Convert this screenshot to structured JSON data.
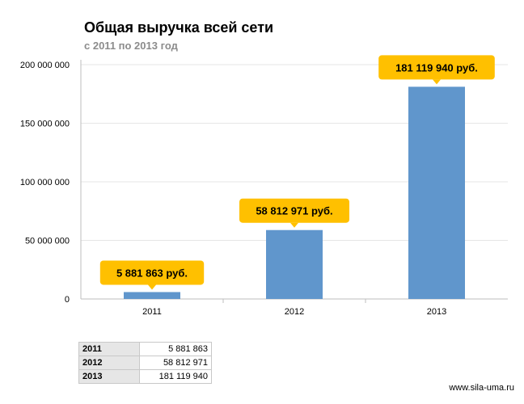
{
  "title": "Общая выручка всей сети",
  "subtitle": "с 2011 по 2013 год",
  "watermark": "www.sila-uma.ru",
  "colors": {
    "bar": "#6096cc",
    "callout": "#ffc000",
    "grid": "#e6e6e6"
  },
  "chart_data": {
    "type": "bar",
    "title": "Общая выручка всей сети",
    "subtitle": "с 2011 по 2013 год",
    "xlabel": "",
    "ylabel": "",
    "categories": [
      "2011",
      "2012",
      "2013"
    ],
    "values": [
      5881863,
      58812971,
      181119940
    ],
    "ylim": [
      0,
      200000000
    ],
    "yticks": [
      0,
      50000000,
      100000000,
      150000000,
      200000000
    ],
    "ytick_labels": [
      "0",
      "50 000 000",
      "100 000 000",
      "150 000 000",
      "200 000 000"
    ],
    "data_labels": [
      "5 881 863 руб.",
      "58 812 971 руб.",
      "181 119 940 руб."
    ],
    "grid": true,
    "legend": "none"
  },
  "table": {
    "rows": [
      {
        "year": "2011",
        "value": "5 881 863"
      },
      {
        "year": "2012",
        "value": "58 812 971"
      },
      {
        "year": "2013",
        "value": "181 119 940"
      }
    ]
  }
}
